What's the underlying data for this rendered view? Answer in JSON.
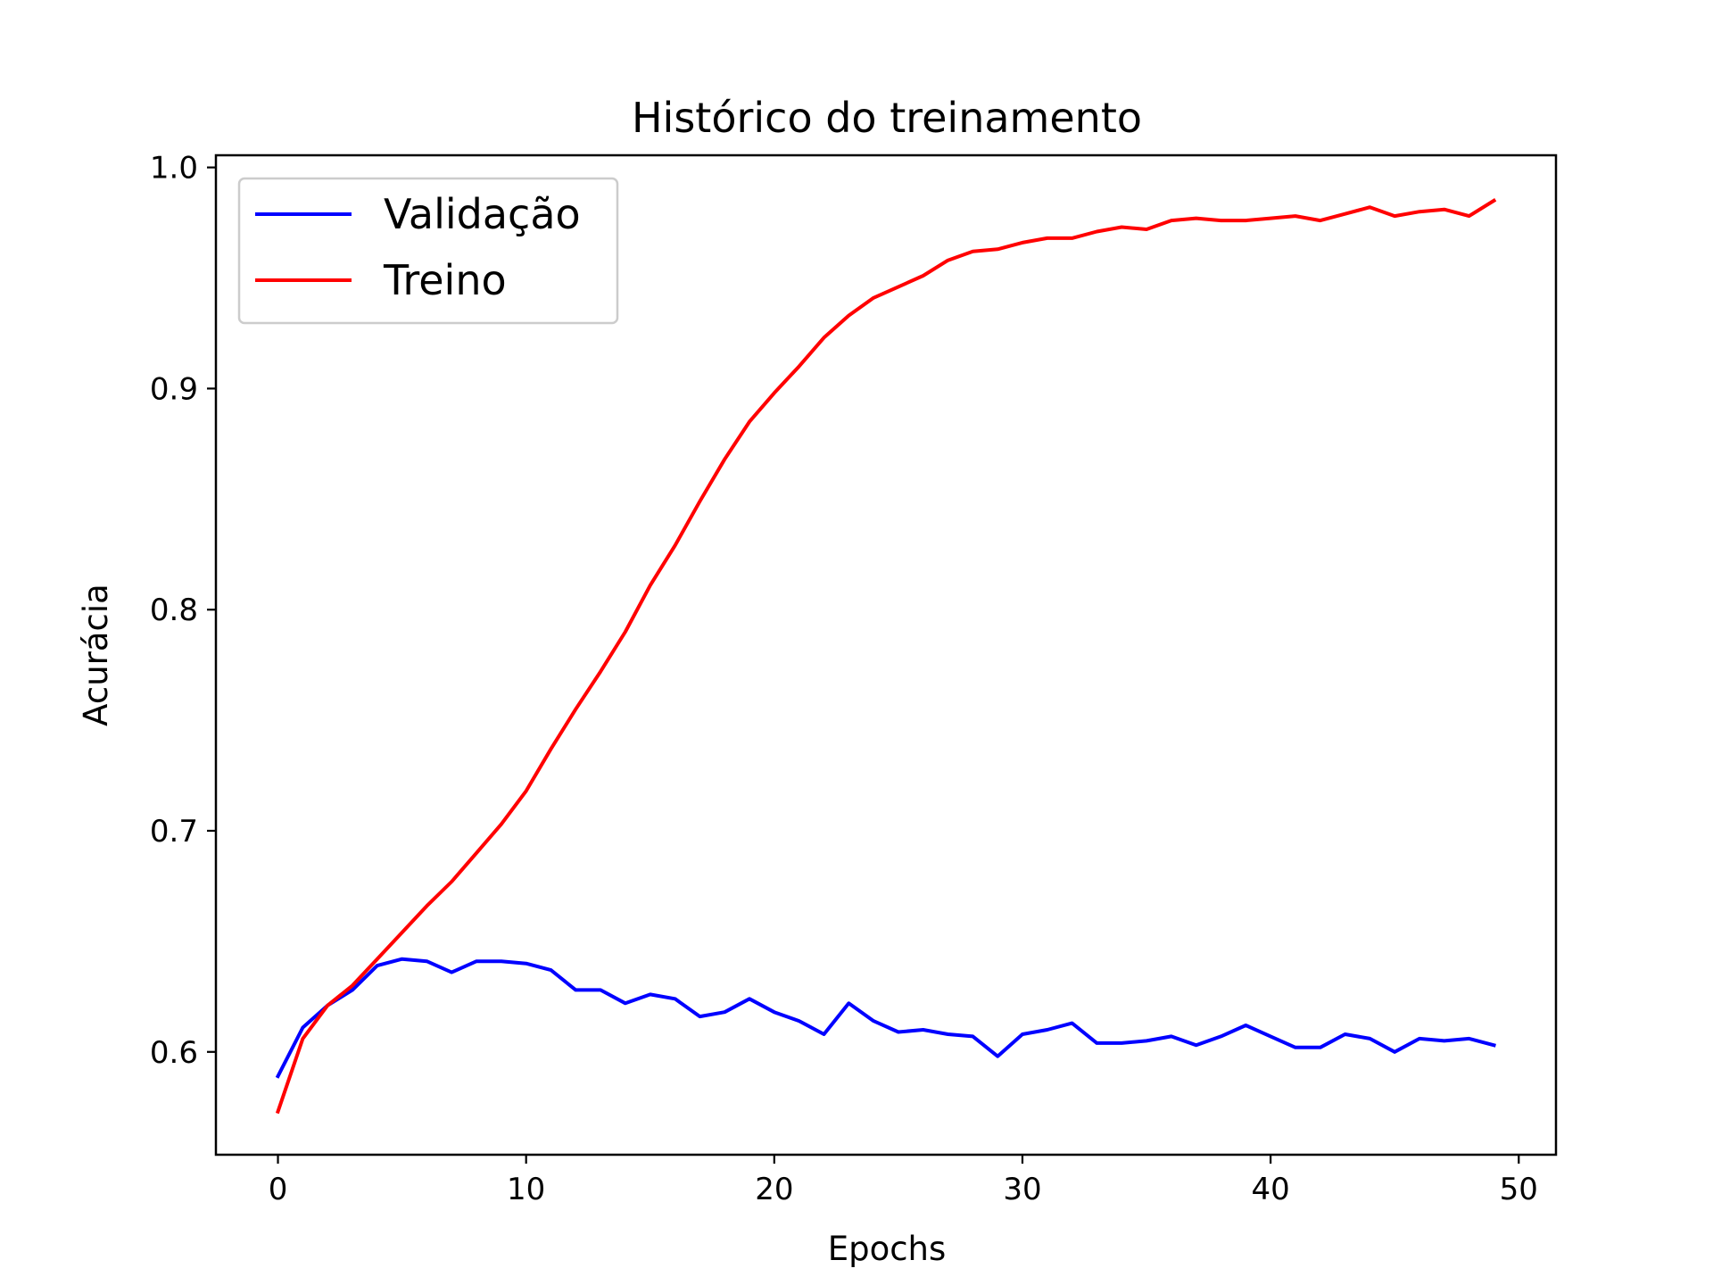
{
  "chart_data": {
    "type": "line",
    "title": "Histórico do treinamento",
    "xlabel": "Epochs",
    "ylabel": "Acurácia",
    "xlim": [
      -2.5,
      51.5
    ],
    "ylim": [
      0.5535,
      1.0055
    ],
    "xticks": [
      0,
      10,
      20,
      30,
      40,
      50
    ],
    "xtick_labels": [
      "0",
      "10",
      "20",
      "30",
      "40",
      "50"
    ],
    "yticks": [
      0.6,
      0.7,
      0.8,
      0.9,
      1.0
    ],
    "ytick_labels": [
      "0.6",
      "0.7",
      "0.8",
      "0.9",
      "1.0"
    ],
    "grid": false,
    "legend_position": "top-left",
    "x": [
      0,
      1,
      2,
      3,
      4,
      5,
      6,
      7,
      8,
      9,
      10,
      11,
      12,
      13,
      14,
      15,
      16,
      17,
      18,
      19,
      20,
      21,
      22,
      23,
      24,
      25,
      26,
      27,
      28,
      29,
      30,
      31,
      32,
      33,
      34,
      35,
      36,
      37,
      38,
      39,
      40,
      41,
      42,
      43,
      44,
      45,
      46,
      47,
      48,
      49
    ],
    "series": [
      {
        "name": "Validação",
        "color": "#0000ff",
        "values": [
          0.589,
          0.611,
          0.621,
          0.628,
          0.639,
          0.642,
          0.641,
          0.636,
          0.641,
          0.641,
          0.64,
          0.637,
          0.628,
          0.628,
          0.622,
          0.626,
          0.624,
          0.616,
          0.618,
          0.624,
          0.618,
          0.614,
          0.608,
          0.622,
          0.614,
          0.609,
          0.61,
          0.608,
          0.607,
          0.598,
          0.608,
          0.61,
          0.613,
          0.604,
          0.604,
          0.605,
          0.607,
          0.603,
          0.607,
          0.612,
          0.607,
          0.602,
          0.602,
          0.608,
          0.606,
          0.6,
          0.606,
          0.605,
          0.606,
          0.603
        ]
      },
      {
        "name": "Treino",
        "color": "#ff0000",
        "values": [
          0.573,
          0.606,
          0.621,
          0.63,
          0.642,
          0.654,
          0.666,
          0.677,
          0.69,
          0.703,
          0.718,
          0.737,
          0.755,
          0.772,
          0.79,
          0.811,
          0.829,
          0.849,
          0.868,
          0.885,
          0.898,
          0.91,
          0.923,
          0.933,
          0.941,
          0.946,
          0.951,
          0.958,
          0.962,
          0.963,
          0.966,
          0.968,
          0.968,
          0.971,
          0.973,
          0.972,
          0.976,
          0.977,
          0.976,
          0.976,
          0.977,
          0.978,
          0.976,
          0.979,
          0.982,
          0.978,
          0.98,
          0.981,
          0.978,
          0.985
        ]
      }
    ]
  }
}
